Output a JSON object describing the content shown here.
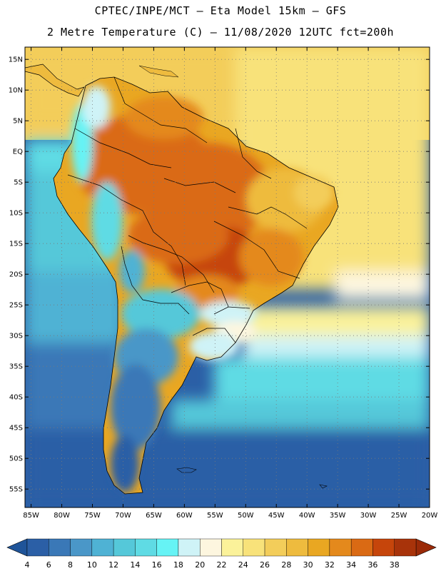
{
  "header": {
    "line1": "CPTEC/INPE/MCT –  Eta Model 15km – GFS",
    "line2": "2 Metre Temperature (C) – 11/08/2020 12UTC fct=200h"
  },
  "map": {
    "lon_range": [
      -86,
      -20
    ],
    "lat_range": [
      -58,
      17
    ],
    "lat_ticks": [
      "15N",
      "10N",
      "5N",
      "EQ",
      "5S",
      "10S",
      "15S",
      "20S",
      "25S",
      "30S",
      "35S",
      "40S",
      "45S",
      "50S",
      "55S"
    ],
    "lat_values": [
      15,
      10,
      5,
      0,
      -5,
      -10,
      -15,
      -20,
      -25,
      -30,
      -35,
      -40,
      -45,
      -50,
      -55
    ],
    "lon_ticks": [
      "85W",
      "80W",
      "75W",
      "70W",
      "65W",
      "60W",
      "55W",
      "50W",
      "45W",
      "40W",
      "35W",
      "30W",
      "25W",
      "20W"
    ],
    "lon_values": [
      -85,
      -80,
      -75,
      -70,
      -65,
      -60,
      -55,
      -50,
      -45,
      -40,
      -35,
      -30,
      -25,
      -20
    ]
  },
  "colorbar": {
    "labels": [
      "4",
      "6",
      "8",
      "10",
      "12",
      "14",
      "16",
      "18",
      "20",
      "22",
      "24",
      "26",
      "28",
      "30",
      "32",
      "34",
      "36",
      "38"
    ],
    "colors": [
      "#2b5fa6",
      "#3a78b7",
      "#4a97c8",
      "#4fb2d4",
      "#55c8d9",
      "#5fdbe4",
      "#66f3f5",
      "#cff3f7",
      "#fdf6df",
      "#fbf29a",
      "#f8e27a",
      "#f3cd5a",
      "#eebb3e",
      "#e9a722",
      "#e4891c",
      "#da6a14",
      "#c6450b",
      "#a8330a"
    ],
    "left_end_color": "#1f5499",
    "right_end_color": "#9a2a08"
  }
}
